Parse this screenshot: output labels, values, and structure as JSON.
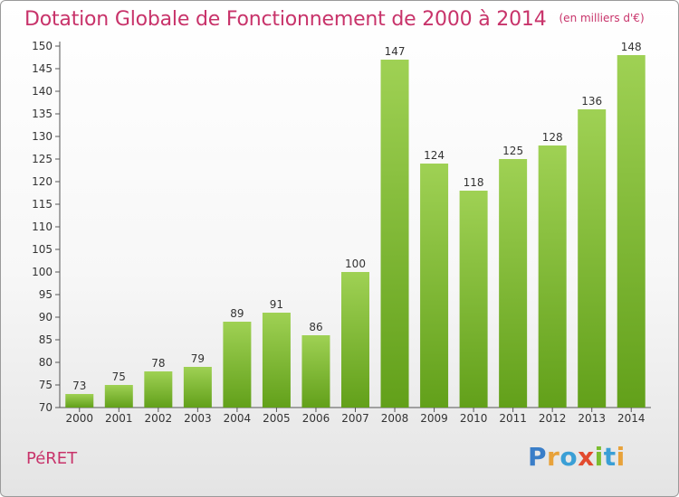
{
  "header": {
    "title": "Dotation Globale de Fonctionnement de 2000 à 2014",
    "unit": "(en milliers d'€)"
  },
  "footer": {
    "commune": "PéRET",
    "brand_letters": [
      {
        "ch": "P",
        "color": "#3a7ec8"
      },
      {
        "ch": "r",
        "color": "#e8a23a"
      },
      {
        "ch": "o",
        "color": "#3a9fd6"
      },
      {
        "ch": "x",
        "color": "#e24a2e"
      },
      {
        "ch": "i",
        "color": "#7bbd2f"
      },
      {
        "ch": "t",
        "color": "#3a9fd6"
      },
      {
        "ch": "i",
        "color": "#e8a23a"
      }
    ]
  },
  "colors": {
    "title": "#c8336a",
    "bar_top": "#9fd154",
    "bar_bottom": "#62a01a"
  },
  "chart_data": {
    "type": "bar",
    "title": "Dotation Globale de Fonctionnement de 2000 à 2014",
    "subtitle": "(en milliers d'€)",
    "categories": [
      "2000",
      "2001",
      "2002",
      "2003",
      "2004",
      "2005",
      "2006",
      "2007",
      "2008",
      "2009",
      "2010",
      "2011",
      "2012",
      "2013",
      "2014"
    ],
    "values": [
      73,
      75,
      78,
      79,
      89,
      91,
      86,
      100,
      147,
      124,
      118,
      125,
      128,
      136,
      148
    ],
    "ylim": [
      70,
      150
    ],
    "yticks": [
      70,
      75,
      80,
      85,
      90,
      95,
      100,
      105,
      110,
      115,
      120,
      125,
      130,
      135,
      140,
      145,
      150
    ],
    "grid": false,
    "legend": "none"
  }
}
